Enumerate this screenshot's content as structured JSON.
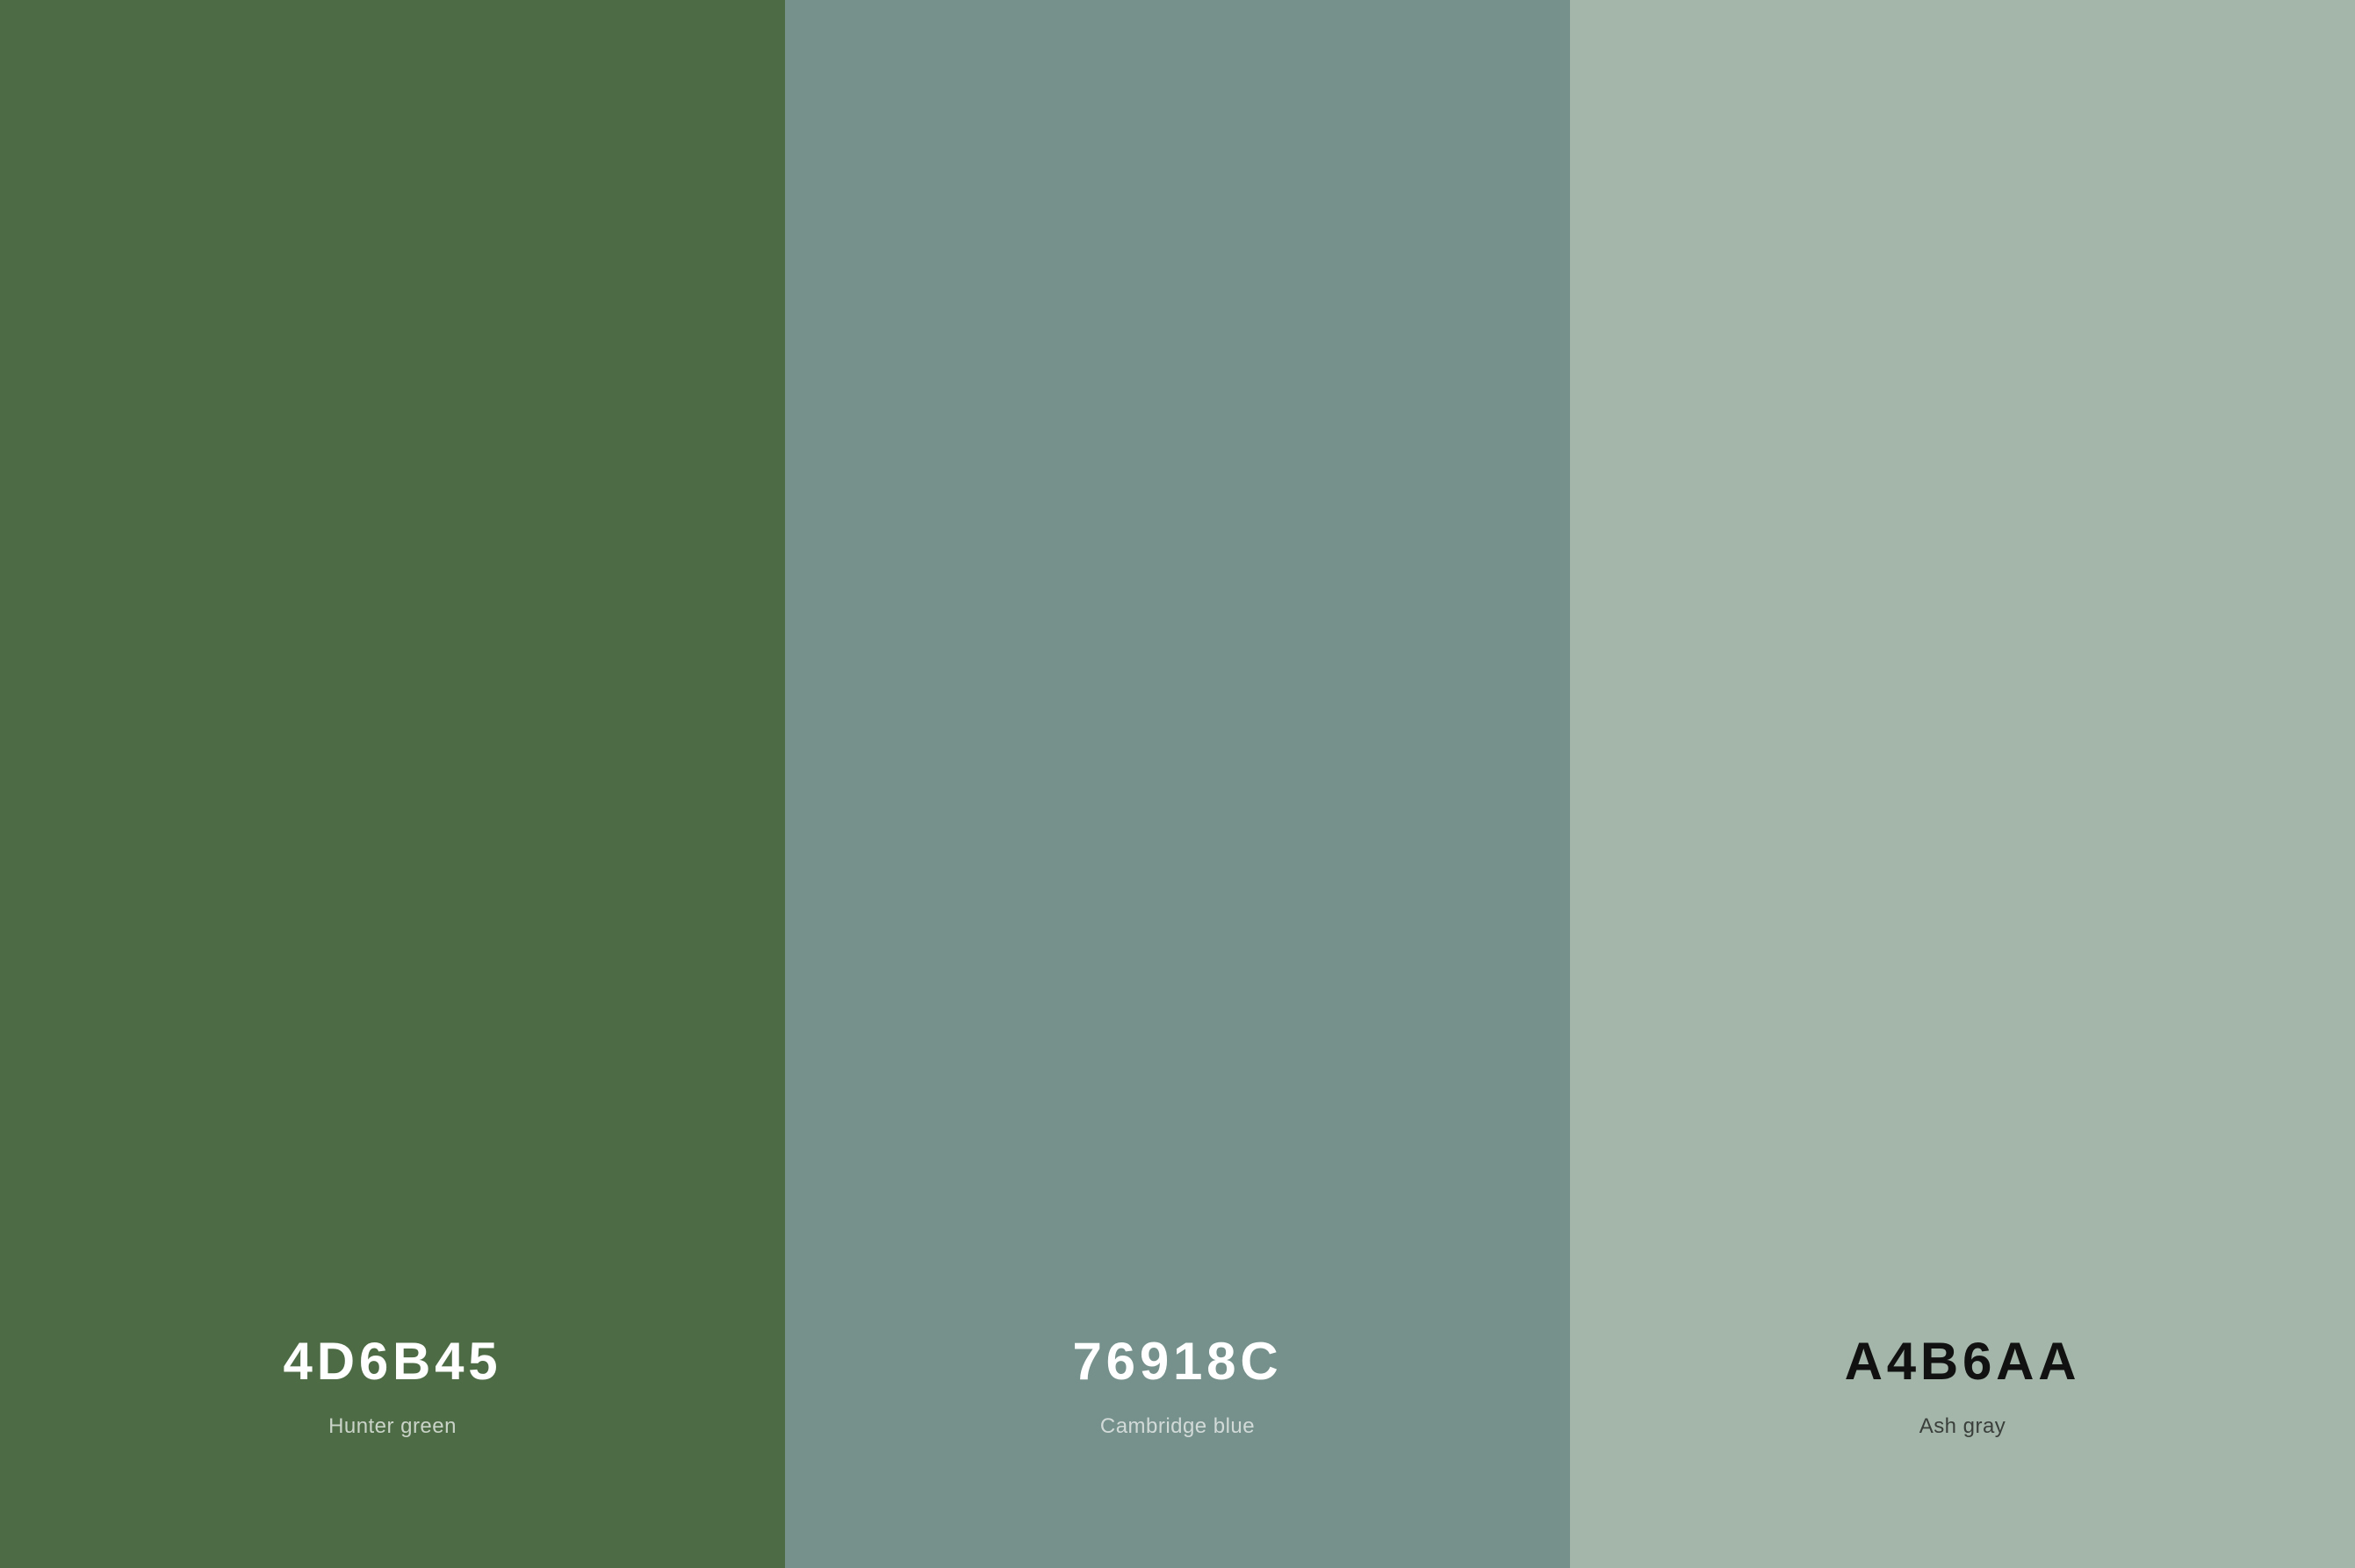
{
  "type": "color-palette",
  "layout": "horizontal",
  "swatch_count": 3,
  "swatches": [
    {
      "hex_label": "4D6B45",
      "name": "Hunter green",
      "background_color": "#4d6b45",
      "text_color": "#ffffff",
      "name_text_color": "#c9d3c7"
    },
    {
      "hex_label": "76918C",
      "name": "Cambridge blue",
      "background_color": "#76918c",
      "text_color": "#ffffff",
      "name_text_color": "#d2dad8"
    },
    {
      "hex_label": "A4B6AA",
      "name": "Ash gray",
      "background_color": "#a4b6aa",
      "text_color": "#111111",
      "name_text_color": "#3a3f3c"
    }
  ],
  "typography": {
    "hex_font_size_pt": 32,
    "hex_font_weight": 600,
    "hex_letter_spacing_em": 0.08,
    "name_font_size_pt": 13,
    "name_font_weight": 500,
    "font_family": "-apple-system sans-serif"
  },
  "layout_detail": {
    "text_vertical_position": "bottom",
    "bottom_padding_percent": 5.5,
    "text_align": "center"
  }
}
